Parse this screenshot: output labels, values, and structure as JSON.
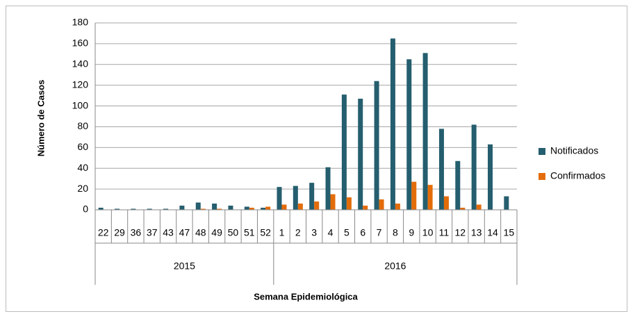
{
  "chart_data": {
    "type": "bar",
    "x_label": "Semana Epidemiológica",
    "y_label": "Número de Casos",
    "groups": [
      {
        "label": "2015",
        "categories": [
          "22",
          "29",
          "36",
          "37",
          "43",
          "47",
          "48",
          "49",
          "50",
          "51",
          "52"
        ]
      },
      {
        "label": "2016",
        "categories": [
          "1",
          "2",
          "3",
          "4",
          "5",
          "6",
          "7",
          "8",
          "9",
          "10",
          "11",
          "12",
          "13",
          "14",
          "15"
        ]
      }
    ],
    "series": [
      {
        "name": "Notificados",
        "color": "#255e6e",
        "values": [
          2,
          1,
          1,
          1,
          1,
          4,
          7,
          6,
          4,
          3,
          2,
          22,
          23,
          26,
          41,
          111,
          107,
          124,
          165,
          145,
          151,
          78,
          47,
          82,
          63,
          13
        ]
      },
      {
        "name": "Confirmados",
        "color": "#e36c0a",
        "values": [
          0,
          0,
          0,
          0,
          0,
          0,
          1,
          1,
          0,
          2,
          3,
          5,
          6,
          8,
          15,
          12,
          4,
          10,
          6,
          27,
          24,
          13,
          2,
          5,
          0,
          0
        ]
      }
    ],
    "ylim": [
      0,
      180
    ],
    "yticks": [
      0,
      20,
      40,
      60,
      80,
      100,
      120,
      140,
      160,
      180
    ],
    "grid": true,
    "legend": "right"
  }
}
